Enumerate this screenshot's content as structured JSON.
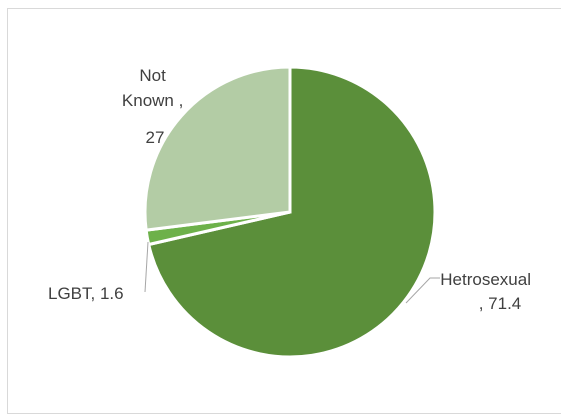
{
  "chart_data": {
    "type": "pie",
    "title": "",
    "series": [
      {
        "name": "",
        "categories": [
          "Hetrosexual",
          "LGBT",
          "Not Known"
        ],
        "values": [
          71.4,
          1.6,
          27
        ],
        "colors": [
          "#5b8f3a",
          "#6db14a",
          "#b3cca5"
        ]
      }
    ],
    "data_labels": [
      {
        "lines": [
          "Hetrosexual",
          ", 71.4"
        ]
      },
      {
        "lines": [
          "LGBT, 1.6"
        ]
      },
      {
        "lines": [
          "Not",
          "Known ,",
          "27"
        ]
      }
    ],
    "start_angle_deg": 0,
    "direction": "clockwise",
    "legend": "none"
  }
}
